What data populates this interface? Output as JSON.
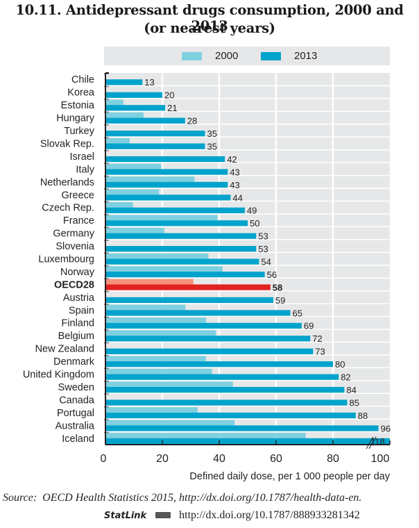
{
  "chart_data": {
    "type": "bar",
    "orientation": "horizontal",
    "title": "10.11.  Antidepressant drugs consumption, 2000 and 2013",
    "subtitle": "(or nearest years)",
    "xlabel": "Defined daily dose, per 1 000 people per day",
    "ylabel": "",
    "xlim": [
      0,
      100
    ],
    "x_ticks": [
      "0",
      "20",
      "40",
      "60",
      "80",
      "100"
    ],
    "grid": true,
    "legend_position": "top",
    "categories": [
      "Chile",
      "Korea",
      "Estonia",
      "Hungary",
      "Turkey",
      "Slovak Rep.",
      "Israel",
      "Italy",
      "Netherlands",
      "Greece",
      "Czech Rep.",
      "France",
      "Germany",
      "Slovenia",
      "Luxembourg",
      "Norway",
      "OECD28",
      "Austria",
      "Spain",
      "Finland",
      "Belgium",
      "New Zealand",
      "Denmark",
      "United Kingdom",
      "Sweden",
      "Canada",
      "Portugal",
      "Australia",
      "Iceland"
    ],
    "highlight_category": "OECD28",
    "series": [
      {
        "name": "2000",
        "color": "#7fd0e0",
        "highlight_color": "#f4907c",
        "values": [
          null,
          null,
          6.3,
          13.4,
          null,
          8.5,
          null,
          19.6,
          31.3,
          18.9,
          9.7,
          39.4,
          20.7,
          null,
          36.2,
          41.2,
          30.9,
          null,
          28.1,
          35.4,
          38.8,
          null,
          35.3,
          37.5,
          44.8,
          null,
          32.4,
          45.4,
          70.4
        ]
      },
      {
        "name": "2013",
        "color": "#00a3cb",
        "highlight_color": "#e2221f",
        "values": [
          13,
          20,
          21,
          28,
          35,
          35,
          42,
          43,
          43,
          44,
          49,
          50,
          53,
          53,
          54,
          56,
          58,
          59,
          65,
          69,
          72,
          73,
          80,
          82,
          84,
          85,
          88,
          96,
          118
        ]
      }
    ],
    "data_labels": [
      "13",
      "20",
      "21",
      "28",
      "35",
      "35",
      "42",
      "43",
      "43",
      "44",
      "49",
      "50",
      "53",
      "53",
      "54",
      "56",
      "58",
      "59",
      "65",
      "69",
      "72",
      "73",
      "80",
      "82",
      "84",
      "85",
      "88",
      "96",
      "118"
    ],
    "annotations": [
      "axis break on Iceland bar (value 118 exceeds axis)"
    ]
  },
  "source": {
    "prefix": "Source:",
    "text": "OECD Health Statistics 2015, http://dx.doi.org/10.1787/health-data-en.",
    "statlink_label": "StatLink",
    "statlink_url": "http://dx.doi.org/10.1787/888933281342"
  }
}
